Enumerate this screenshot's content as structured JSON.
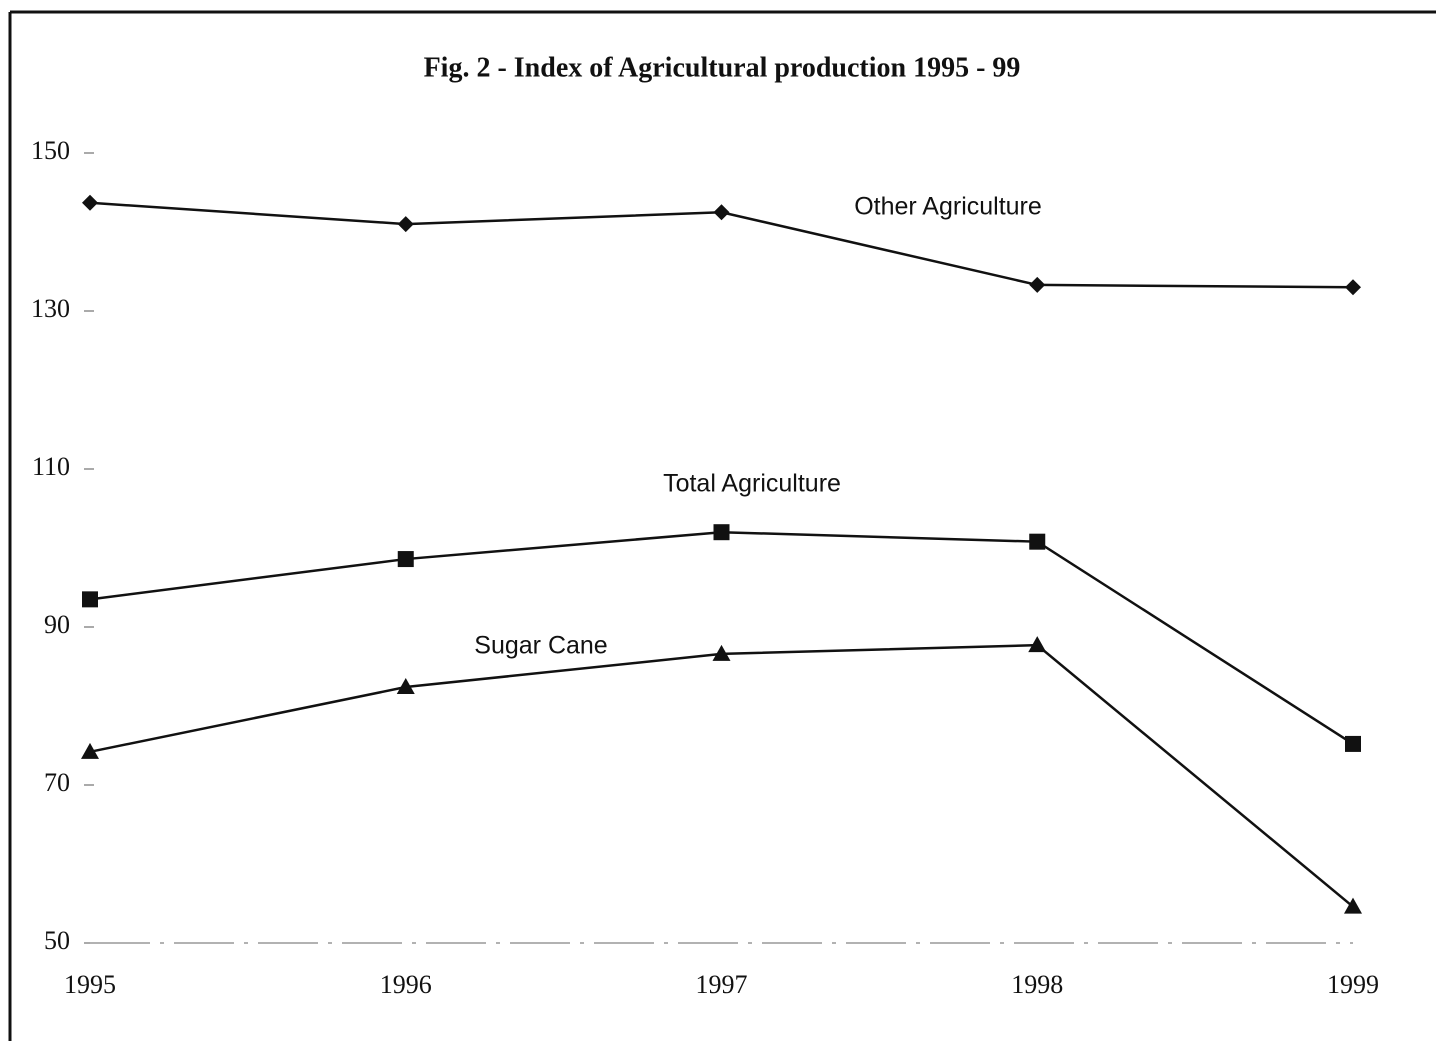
{
  "chart_data": {
    "type": "line",
    "title": "Fig. 2 - Index of Agricultural production 1995 - 99",
    "categories": [
      "1995",
      "1996",
      "1997",
      "1998",
      "1999"
    ],
    "series": [
      {
        "name": "Other Agriculture",
        "color": "#111111",
        "marker": "diamond",
        "values": [
          143.7,
          141.0,
          142.5,
          133.3,
          133.0
        ]
      },
      {
        "name": "Total Agriculture",
        "color": "#111111",
        "marker": "square",
        "values": [
          93.5,
          98.6,
          102.0,
          100.8,
          75.2
        ]
      },
      {
        "name": "Sugar Cane",
        "color": "#111111",
        "marker": "triangle",
        "values": [
          74.2,
          82.4,
          86.6,
          87.7,
          54.6
        ]
      }
    ],
    "ylim": [
      50,
      150
    ],
    "yticks": [
      50,
      70,
      90,
      110,
      130,
      150
    ],
    "grid": false
  }
}
